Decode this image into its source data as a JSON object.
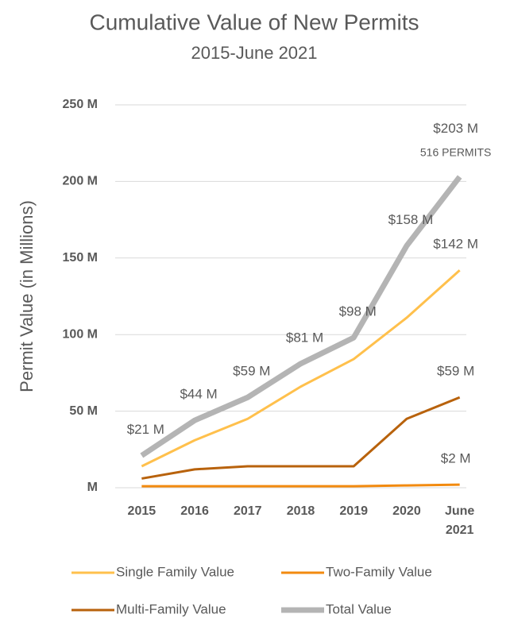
{
  "chart_data": {
    "type": "line",
    "title": "Cumulative Value of New Permits",
    "subtitle": "2015-June 2021",
    "y_label": "Permit Value (in Millions)",
    "categories": [
      "2015",
      "2016",
      "2017",
      "2018",
      "2019",
      "2020",
      "June 2021"
    ],
    "series": [
      {
        "name": "Single Family Value",
        "color": "#ffc04c",
        "width": 3,
        "values": [
          14,
          31,
          45,
          66,
          84,
          111,
          142
        ],
        "value_labels": [
          null,
          null,
          null,
          null,
          null,
          null,
          "$142 M"
        ]
      },
      {
        "name": "Two-Family Value",
        "color": "#f28a0f",
        "width": 3,
        "values": [
          1,
          1,
          1,
          1,
          1,
          1.5,
          2
        ],
        "value_labels": [
          null,
          null,
          null,
          null,
          null,
          null,
          "$2 M"
        ]
      },
      {
        "name": "Multi-Family Value",
        "color": "#b8620c",
        "width": 3,
        "values": [
          6,
          12,
          14,
          14,
          14,
          45,
          59
        ],
        "value_labels": [
          null,
          null,
          null,
          null,
          null,
          null,
          "$59 M"
        ]
      },
      {
        "name": "Total Value",
        "color": "#b4b4b4",
        "width": 7,
        "values": [
          21,
          44,
          59,
          81,
          98,
          158,
          203
        ],
        "value_labels": [
          "$21 M",
          "$44 M",
          "$59 M",
          "$81 M",
          "$98 M",
          "$158 M",
          "$203 M"
        ]
      }
    ],
    "annotation": "516 PERMITS",
    "ylim": [
      0,
      250
    ],
    "yticks": [
      {
        "value": 0,
        "label": "M"
      },
      {
        "value": 50,
        "label": "50 M"
      },
      {
        "value": 100,
        "label": "100 M"
      },
      {
        "value": 150,
        "label": "150 M"
      },
      {
        "value": 200,
        "label": "200 M"
      },
      {
        "value": 250,
        "label": "250 M"
      }
    ],
    "grid": true,
    "legend": "bottom"
  }
}
